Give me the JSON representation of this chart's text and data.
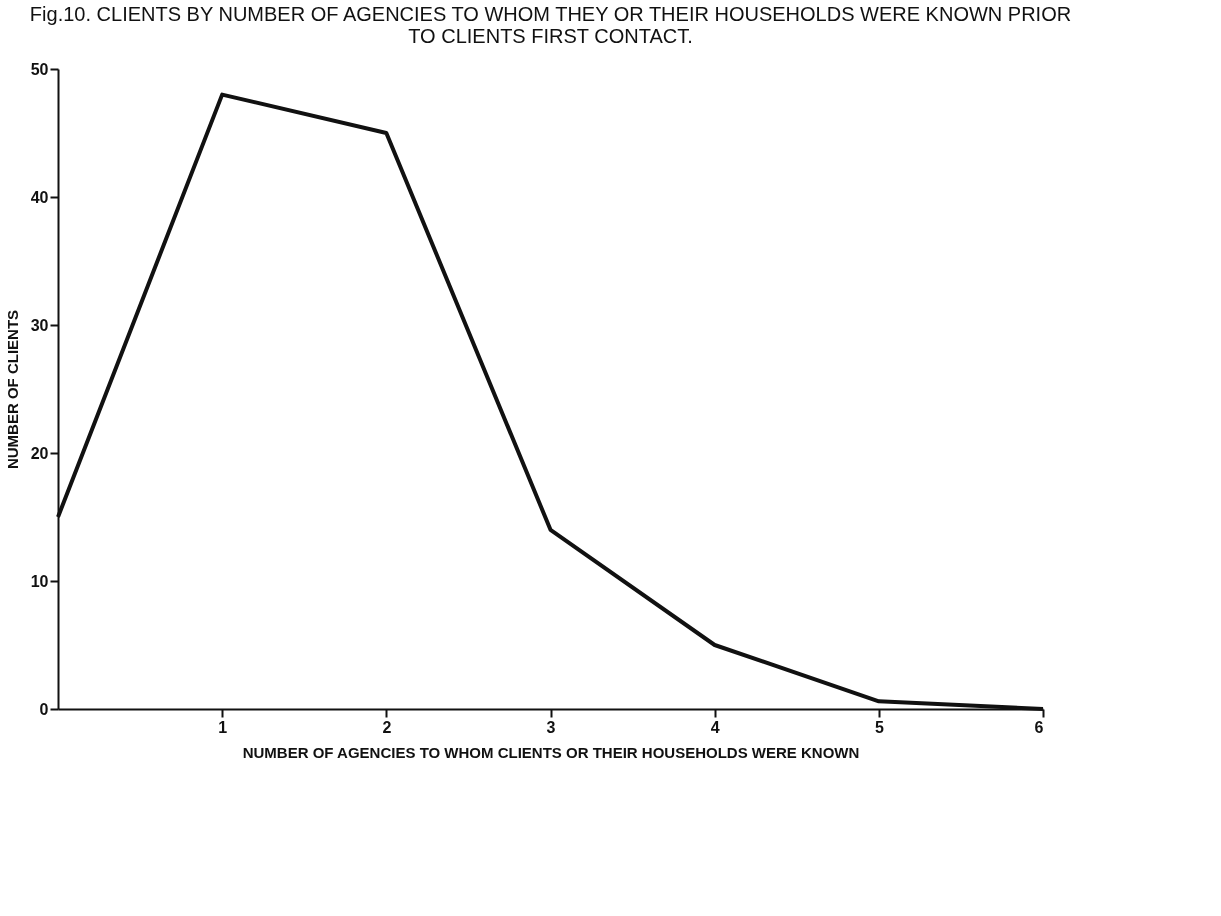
{
  "chart_data": {
    "type": "line",
    "title": "Fig.10.   CLIENTS BY NUMBER OF AGENCIES TO WHOM THEY OR THEIR HOUSEHOLDS WERE KNOWN PRIOR\nTO CLIENTS FIRST CONTACT.",
    "xlabel": "NUMBER OF AGENCIES TO WHOM CLIENTS OR THEIR HOUSEHOLDS WERE KNOWN",
    "ylabel": "NUMBER OF CLIENTS",
    "x": [
      0,
      1,
      2,
      3,
      4,
      5,
      6
    ],
    "series": [
      {
        "color": "#111111",
        "values": [
          15,
          48,
          45,
          14,
          5,
          0.6,
          0
        ]
      }
    ],
    "xlim": [
      0,
      6
    ],
    "xticks": [
      1,
      2,
      3,
      4,
      5,
      6
    ],
    "ylim": [
      0,
      50
    ],
    "yticks": [
      0,
      10,
      20,
      30,
      40,
      50
    ],
    "grid": false,
    "marker": "none",
    "line_style": "solid"
  }
}
